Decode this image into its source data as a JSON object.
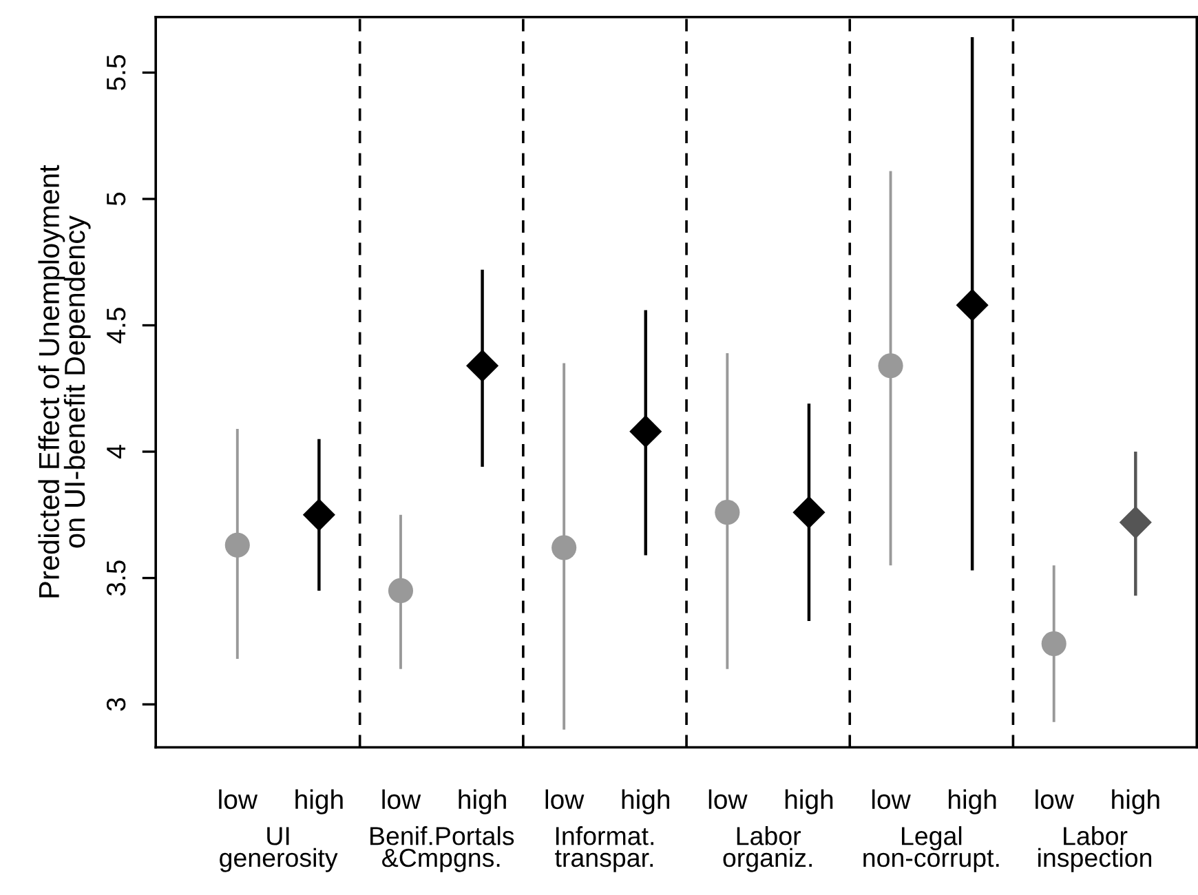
{
  "chart_data": {
    "type": "scatter",
    "ylabel": "Predicted Effect of Unemployment\non UI-benefit Dependency",
    "categories": [
      "low",
      "high",
      "low",
      "high",
      "low",
      "high",
      "low",
      "high",
      "low",
      "high",
      "low",
      "high"
    ],
    "series": [
      {
        "marker": "circle",
        "color": "#999999",
        "values": [
          3.63,
          null,
          3.45,
          null,
          3.62,
          null,
          3.76,
          null,
          4.34,
          null,
          3.24,
          null
        ],
        "errors": [
          [
            3.18,
            4.09
          ],
          null,
          [
            3.14,
            3.75
          ],
          null,
          [
            2.9,
            4.35
          ],
          null,
          [
            3.14,
            4.39
          ],
          null,
          [
            3.55,
            5.11
          ],
          null,
          [
            2.93,
            3.55
          ],
          null
        ]
      },
      {
        "marker": "diamond",
        "color": "#000000",
        "colors": [
          null,
          null,
          null,
          null,
          null,
          null,
          null,
          null,
          null,
          null,
          null,
          "#555555"
        ],
        "values": [
          null,
          3.75,
          null,
          4.34,
          null,
          4.08,
          null,
          3.76,
          null,
          4.58,
          null,
          3.72
        ],
        "errors": [
          null,
          [
            3.45,
            4.05
          ],
          null,
          [
            3.94,
            4.72
          ],
          null,
          [
            3.59,
            4.56
          ],
          null,
          [
            3.33,
            4.19
          ],
          null,
          [
            3.53,
            5.64
          ],
          null,
          [
            3.43,
            4.0
          ]
        ]
      }
    ],
    "ylim": [
      2.83,
      5.72
    ],
    "yticks": [
      3,
      3.5,
      4,
      4.5,
      5,
      5.5
    ],
    "grid": false,
    "annotations": [
      "UI\ngenerosity",
      "Benif.Portals\n&Cmpgns.",
      "Informat.\ntranspar.",
      "Labor\norganiz.",
      "Legal\nnon-corrupt.",
      "Labor\ninspection"
    ]
  }
}
